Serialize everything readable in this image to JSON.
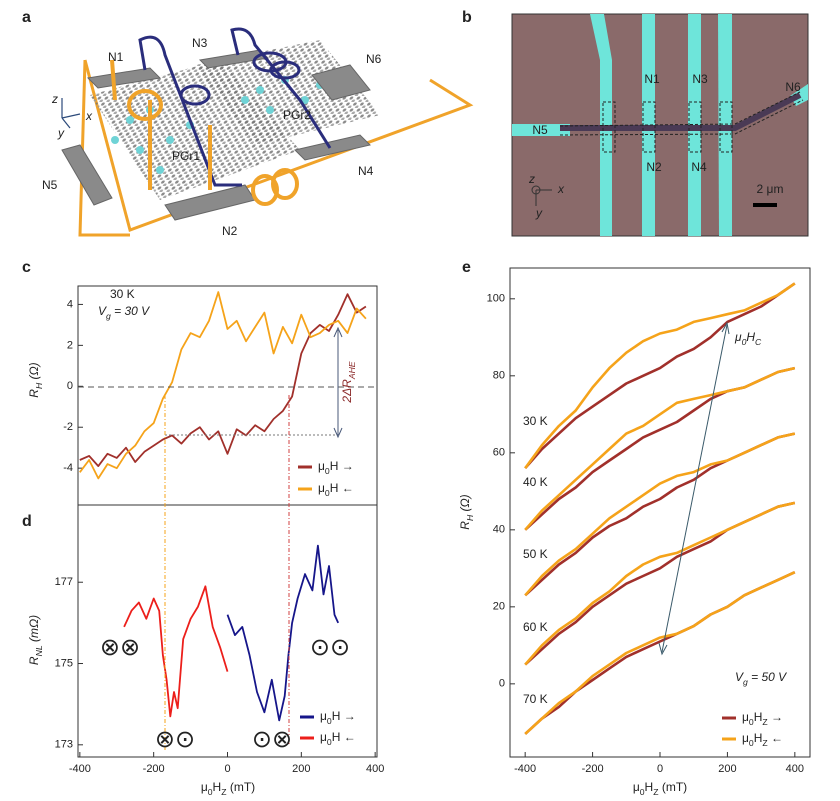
{
  "panel_labels": [
    "a",
    "b",
    "c",
    "d",
    "e"
  ],
  "schematic": {
    "nodes": [
      "N1",
      "N2",
      "N3",
      "N4",
      "N5",
      "N6"
    ],
    "flakes": [
      "PGr1",
      "PGr2"
    ],
    "axes": [
      "z",
      "x",
      "y"
    ]
  },
  "micrograph": {
    "nodes": [
      "N1",
      "N2",
      "N3",
      "N4",
      "N5",
      "N6"
    ],
    "axes": [
      "z",
      "x",
      "y"
    ],
    "scale_bar": "2 μm"
  },
  "chart_data": [
    {
      "type": "line",
      "annotations": [
        "30 K",
        [
          {
            "text": "V"
          },
          {
            "text": "g",
            "sub": true
          },
          {
            "text": " = 30 V"
          }
        ]
      ],
      "effect_label": [
        {
          "text": "2ΔR"
        },
        {
          "text": "AHE",
          "sub": true
        }
      ],
      "ylabel": [
        {
          "text": "R"
        },
        {
          "text": "H",
          "sub": true
        },
        {
          "text": " (Ω)"
        }
      ],
      "x": [
        -400,
        -375,
        -350,
        -325,
        -300,
        -275,
        -250,
        -225,
        -200,
        -175,
        -150,
        -125,
        -100,
        -75,
        -50,
        -25,
        0,
        25,
        50,
        75,
        100,
        125,
        150,
        175,
        200,
        225,
        250,
        275,
        300,
        325,
        350,
        375
      ],
      "xlim": [
        -405,
        405
      ],
      "ylim": [
        -5.8,
        4.9
      ],
      "yticks": [
        -4,
        -2,
        0,
        2,
        4
      ],
      "series": [
        {
          "name": [
            {
              "text": "μ"
            },
            {
              "text": "0",
              "sub": true
            },
            {
              "text": "H →"
            }
          ],
          "color": "#a1302b",
          "values": [
            -3.6,
            -3.4,
            -3.9,
            -3.3,
            -3.5,
            -3.0,
            -3.7,
            -3.2,
            -2.9,
            -2.6,
            -2.4,
            -2.8,
            -2.3,
            -2.0,
            -2.6,
            -2.2,
            -3.3,
            -2.1,
            -2.4,
            -1.9,
            -2.2,
            -1.6,
            -1.2,
            -0.5,
            1.6,
            2.6,
            3.0,
            2.7,
            3.5,
            4.5,
            3.6,
            3.9
          ]
        },
        {
          "name": [
            {
              "text": "μ"
            },
            {
              "text": "0",
              "sub": true
            },
            {
              "text": "H ←"
            }
          ],
          "color": "#f5a31a",
          "values": [
            -4.2,
            -3.6,
            -4.5,
            -3.8,
            -4.0,
            -3.3,
            -2.9,
            -2.2,
            -1.8,
            -0.6,
            0.2,
            1.8,
            2.6,
            2.4,
            3.2,
            4.6,
            2.8,
            3.2,
            2.2,
            2.9,
            3.6,
            1.6,
            2.9,
            2.1,
            3.5,
            2.4,
            2.6,
            3.0,
            3.2,
            2.6,
            3.8,
            3.3
          ]
        }
      ]
    },
    {
      "type": "line",
      "annotations": [
        "⊗⊗",
        "⊗⊙",
        "⊙⊗",
        "⊙⊙"
      ],
      "xlabel": [
        {
          "text": "μ"
        },
        {
          "text": "0",
          "sub": true
        },
        {
          "text": "H"
        },
        {
          "text": "Z",
          "sub": true
        },
        {
          "text": " (mT)"
        }
      ],
      "ylabel": [
        {
          "text": "R"
        },
        {
          "text": "NL",
          "sub": true
        },
        {
          "text": " (mΩ)"
        }
      ],
      "xlim": [
        -405,
        405
      ],
      "xticks": [
        -400,
        -200,
        0,
        200,
        400
      ],
      "ylim": [
        172.7,
        178.9
      ],
      "yticks": [
        173,
        175,
        177
      ],
      "series": [
        {
          "name": [
            {
              "text": "μ"
            },
            {
              "text": "0",
              "sub": true
            },
            {
              "text": "H →"
            }
          ],
          "color": "#16168a",
          "x": [
            0,
            20,
            40,
            60,
            80,
            100,
            120,
            140,
            155,
            165,
            175,
            190,
            210,
            230,
            245,
            260,
            275,
            290,
            300
          ],
          "values": [
            176.2,
            175.7,
            175.9,
            175.2,
            174.3,
            173.8,
            174.6,
            173.6,
            174.2,
            175.2,
            176.0,
            176.6,
            177.2,
            176.8,
            177.9,
            176.7,
            177.4,
            176.2,
            176.0
          ]
        },
        {
          "name": [
            {
              "text": "μ"
            },
            {
              "text": "0",
              "sub": true
            },
            {
              "text": "H ←"
            }
          ],
          "color": "#ec1f1b",
          "x": [
            -280,
            -260,
            -240,
            -220,
            -200,
            -185,
            -175,
            -165,
            -155,
            -145,
            -135,
            -120,
            -100,
            -80,
            -60,
            -40,
            -20,
            0
          ],
          "values": [
            175.9,
            176.3,
            176.5,
            176.1,
            176.6,
            176.3,
            175.2,
            174.6,
            173.7,
            174.3,
            173.9,
            175.6,
            176.1,
            176.4,
            176.9,
            175.9,
            175.4,
            174.8
          ]
        }
      ]
    },
    {
      "type": "line",
      "annotations": [
        [
          {
            "text": "V"
          },
          {
            "text": "g",
            "sub": true
          },
          {
            "text": " = 50 V"
          }
        ],
        [
          {
            "text": "μ"
          },
          {
            "text": "0",
            "sub": true
          },
          {
            "text": "H"
          },
          {
            "text": "C",
            "sub": true
          }
        ]
      ],
      "temperatures": [
        "30 K",
        "40 K",
        "50 K",
        "60 K",
        "70 K"
      ],
      "xlabel": [
        {
          "text": "μ"
        },
        {
          "text": "0",
          "sub": true
        },
        {
          "text": "H"
        },
        {
          "text": "Z",
          "sub": true
        },
        {
          "text": " (mT)"
        }
      ],
      "ylabel": [
        {
          "text": "R"
        },
        {
          "text": "H",
          "sub": true
        },
        {
          "text": " (Ω)"
        }
      ],
      "x": [
        -400,
        -350,
        -300,
        -250,
        -200,
        -150,
        -100,
        -50,
        0,
        50,
        100,
        150,
        200,
        250,
        300,
        350,
        400
      ],
      "xlim": [
        -445,
        445
      ],
      "xticks": [
        -400,
        -200,
        0,
        200,
        400
      ],
      "ylim": [
        -19,
        108
      ],
      "yticks": [
        0,
        20,
        40,
        60,
        80,
        100
      ],
      "series": [
        {
          "name": [
            {
              "text": "μ"
            },
            {
              "text": "0",
              "sub": true
            },
            {
              "text": "H"
            },
            {
              "text": "Z",
              "sub": true
            },
            {
              "text": " →"
            }
          ],
          "color": "#a1302b",
          "values": [
            [
              56,
              61,
              65,
              69,
              72,
              75,
              78,
              80,
              82,
              85,
              87,
              90,
              94,
              96,
              98,
              101,
              104
            ],
            [
              40,
              44,
              48,
              51,
              55,
              58,
              61,
              64,
              66,
              68,
              71,
              74,
              76,
              77,
              79,
              81,
              82
            ],
            [
              23,
              27,
              31,
              34,
              38,
              41,
              43,
              46,
              48,
              51,
              53,
              56,
              58,
              60,
              62,
              64,
              65
            ],
            [
              5,
              9,
              13,
              16,
              20,
              23,
              26,
              28,
              30,
              33,
              35,
              37,
              40,
              42,
              44,
              46,
              47
            ],
            [
              -13,
              -9,
              -6,
              -2,
              1,
              4,
              7,
              9,
              11,
              13,
              15,
              18,
              20,
              23,
              25,
              27,
              29
            ]
          ]
        },
        {
          "name": [
            {
              "text": "μ"
            },
            {
              "text": "0",
              "sub": true
            },
            {
              "text": "H"
            },
            {
              "text": "Z",
              "sub": true
            },
            {
              "text": " ←"
            }
          ],
          "color": "#f5a31a",
          "values": [
            [
              56,
              62,
              67,
              71,
              77,
              82,
              86,
              89,
              91,
              92,
              94,
              95,
              96,
              97,
              99,
              101,
              104
            ],
            [
              40,
              45,
              49,
              53,
              57,
              61,
              65,
              67,
              70,
              73,
              74,
              75,
              76,
              77,
              79,
              81,
              82
            ],
            [
              23,
              28,
              32,
              35,
              39,
              43,
              46,
              49,
              52,
              54,
              55,
              57,
              58,
              60,
              62,
              64,
              65
            ],
            [
              5,
              10,
              14,
              17,
              21,
              24,
              28,
              31,
              33,
              34,
              36,
              38,
              40,
              42,
              44,
              46,
              47
            ],
            [
              -13,
              -9,
              -5,
              -2,
              2,
              5,
              8,
              10,
              12,
              13,
              15,
              18,
              20,
              23,
              25,
              27,
              29
            ]
          ]
        }
      ]
    }
  ]
}
